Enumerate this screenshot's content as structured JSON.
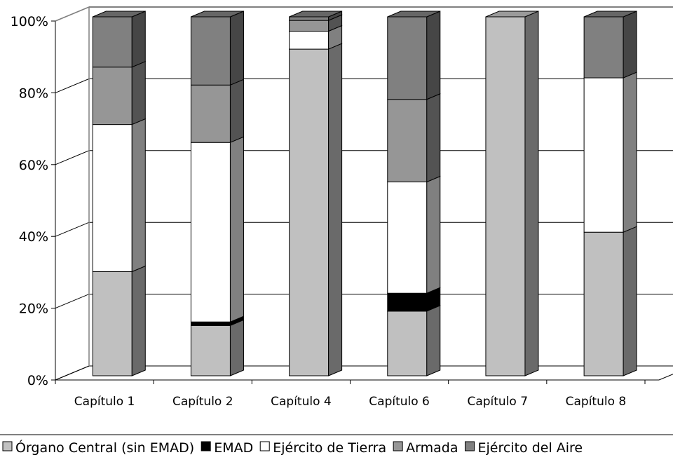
{
  "chart_data": {
    "type": "bar",
    "stacked": "percent",
    "categories": [
      "Capítulo 1",
      "Capítulo 2",
      "Capítulo 4",
      "Capítulo 6",
      "Capítulo 7",
      "Capítulo 8"
    ],
    "y_ticks": [
      "0%",
      "20%",
      "40%",
      "60%",
      "80%",
      "100%"
    ],
    "ylim": [
      0,
      100
    ],
    "grid": true,
    "legend_position": "bottom",
    "series": [
      {
        "name": "Órgano Central (sin EMAD)",
        "color": "#c0c0c0",
        "values": [
          29,
          14,
          91,
          18,
          100,
          40
        ]
      },
      {
        "name": "EMAD",
        "color": "#000000",
        "values": [
          0,
          1,
          0,
          5,
          0,
          0
        ]
      },
      {
        "name": "Ejército de Tierra",
        "color": "#ffffff",
        "values": [
          41,
          50,
          5,
          31,
          0,
          43
        ]
      },
      {
        "name": "Armada",
        "color": "#969696",
        "values": [
          16,
          16,
          3,
          23,
          0,
          0
        ]
      },
      {
        "name": "Ejército del Aire",
        "color": "#808080",
        "values": [
          14,
          19,
          1,
          23,
          0,
          17
        ]
      }
    ]
  }
}
